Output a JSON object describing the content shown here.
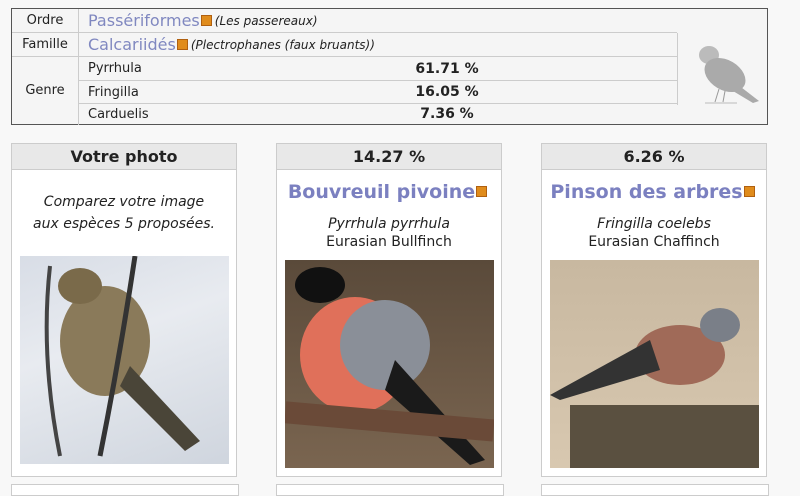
{
  "taxonomy": {
    "ordre": {
      "label": "Ordre",
      "name": "Passériformes",
      "common": "(Les passereaux)"
    },
    "famille": {
      "label": "Famille",
      "name": "Calcariidés",
      "common": "(Plectrophanes (faux bruants))"
    },
    "genre": {
      "label": "Genre",
      "items": [
        {
          "name": "Pyrrhula",
          "pct": "61.71 %"
        },
        {
          "name": "Fringilla",
          "pct": "16.05 %"
        },
        {
          "name": "Carduelis",
          "pct": "7.36 %"
        }
      ]
    },
    "icon": "bird-silhouette-icon"
  },
  "cards": [
    {
      "header": "Votre photo",
      "text": "Comparez votre image aux espèces 5 proposées."
    },
    {
      "header": "14.27 %",
      "name": "Bouvreuil pivoine",
      "scientific": "Pyrrhula pyrrhula",
      "common": "Eurasian Bullfinch"
    },
    {
      "header": "6.26 %",
      "name": "Pinson des arbres",
      "scientific": "Fringilla coelebs",
      "common": "Eurasian Chaffinch"
    }
  ],
  "colors": {
    "link": "#7b80c0",
    "external": "#e08c1c"
  }
}
